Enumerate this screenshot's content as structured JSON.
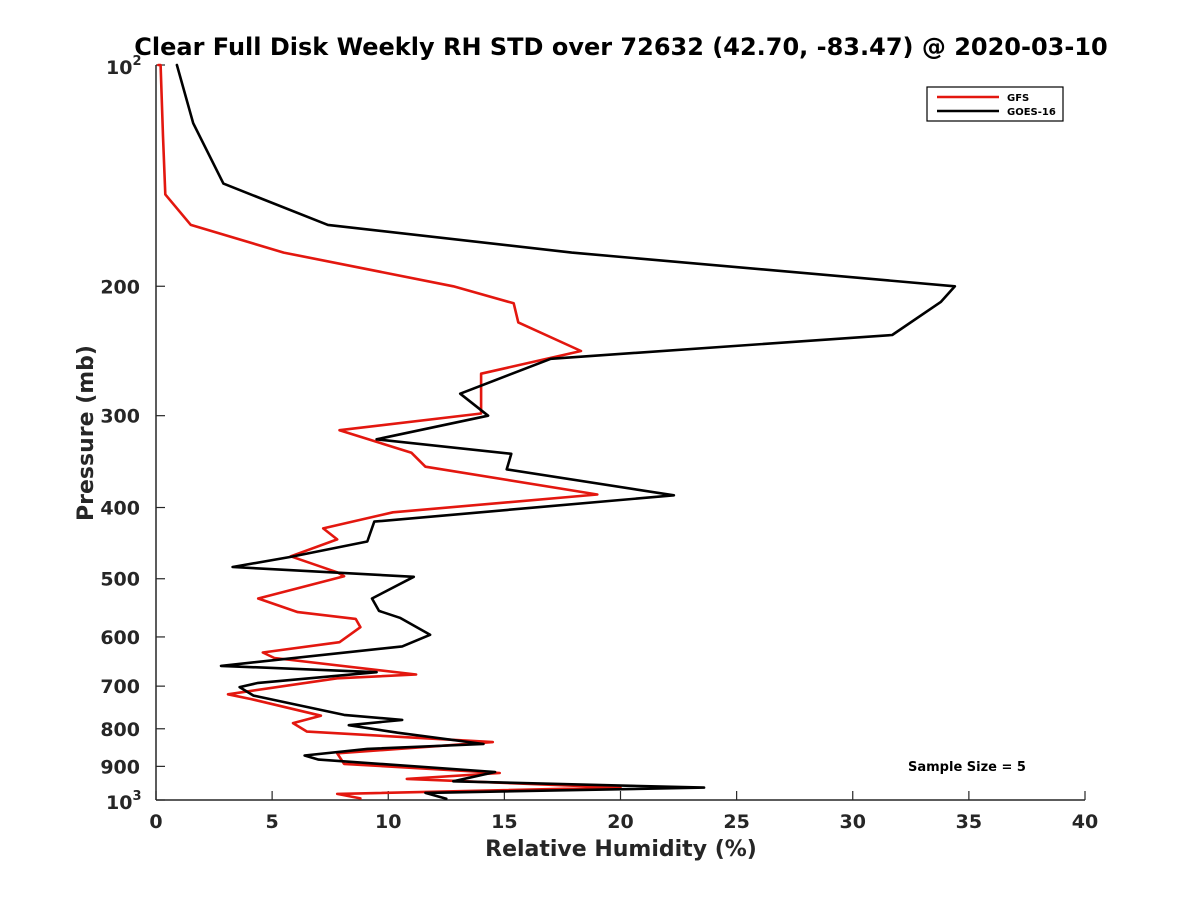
{
  "chart_data": {
    "type": "line",
    "title": "Clear Full Disk Weekly RH STD over 72632 (42.70, -83.47) @ 2020-03-10",
    "xlabel": "Relative Humidity (%)",
    "ylabel": "Pressure (mb)",
    "xlim": [
      0,
      40
    ],
    "ylim": [
      100,
      1000
    ],
    "yscale": "log",
    "y_reversed": true,
    "xticks": [
      0,
      5,
      10,
      15,
      20,
      25,
      30,
      35,
      40
    ],
    "yticks": [
      {
        "value": 100,
        "base": "10",
        "exp": "2"
      },
      {
        "value": 200,
        "label": "200"
      },
      {
        "value": 300,
        "label": "300"
      },
      {
        "value": 400,
        "label": "400"
      },
      {
        "value": 500,
        "label": "500"
      },
      {
        "value": 600,
        "label": "600"
      },
      {
        "value": 700,
        "label": "700"
      },
      {
        "value": 800,
        "label": "800"
      },
      {
        "value": 900,
        "label": "900"
      },
      {
        "value": 1000,
        "base": "10",
        "exp": "3"
      }
    ],
    "grid": false,
    "legend_position": "top-right",
    "annotation": "Sample Size = 5",
    "series": [
      {
        "name": "GFS",
        "color": "#e3170f",
        "points": [
          [
            0.1,
            100
          ],
          [
            0.2,
            100
          ],
          [
            0.3,
            125
          ],
          [
            0.4,
            150
          ],
          [
            1.5,
            165
          ],
          [
            5.5,
            180
          ],
          [
            12.8,
            200
          ],
          [
            15.4,
            211
          ],
          [
            15.6,
            224
          ],
          [
            18.3,
            245
          ],
          [
            14,
            263
          ],
          [
            14,
            298
          ],
          [
            7.9,
            314
          ],
          [
            11,
            337
          ],
          [
            11.6,
            352
          ],
          [
            19,
            384
          ],
          [
            10.2,
            406
          ],
          [
            7.2,
            427
          ],
          [
            7.8,
            442
          ],
          [
            5.8,
            466
          ],
          [
            7.8,
            490
          ],
          [
            8.1,
            496
          ],
          [
            4.4,
            532
          ],
          [
            6.1,
            555
          ],
          [
            8.6,
            567
          ],
          [
            8.8,
            582
          ],
          [
            7.9,
            610
          ],
          [
            4.6,
            630
          ],
          [
            5.1,
            641
          ],
          [
            11.2,
            675
          ],
          [
            7.8,
            683
          ],
          [
            3.1,
            718
          ],
          [
            4.1,
            729
          ],
          [
            7.1,
            768
          ],
          [
            5.9,
            786
          ],
          [
            6.5,
            807
          ],
          [
            14.5,
            834
          ],
          [
            7.8,
            864
          ],
          [
            8.1,
            893
          ],
          [
            14.8,
            919
          ],
          [
            10.8,
            936
          ],
          [
            20,
            962
          ],
          [
            7.8,
            981
          ],
          [
            8.8,
            995
          ]
        ]
      },
      {
        "name": "GOES-16",
        "color": "#000000",
        "points": [
          [
            0.9,
            100
          ],
          [
            1.6,
            120
          ],
          [
            2.9,
            145
          ],
          [
            7.4,
            165
          ],
          [
            17.9,
            180
          ],
          [
            34.4,
            200
          ],
          [
            33.8,
            210
          ],
          [
            31.7,
            233
          ],
          [
            17,
            251
          ],
          [
            13.1,
            280
          ],
          [
            14.3,
            300
          ],
          [
            9.5,
            323
          ],
          [
            15.3,
            338
          ],
          [
            15.1,
            355
          ],
          [
            22.3,
            385
          ],
          [
            9.4,
            418
          ],
          [
            9.1,
            445
          ],
          [
            5.8,
            467
          ],
          [
            3.3,
            482
          ],
          [
            11.1,
            497
          ],
          [
            9.3,
            532
          ],
          [
            9.6,
            553
          ],
          [
            10.5,
            565
          ],
          [
            11.8,
            596
          ],
          [
            10.6,
            618
          ],
          [
            2.8,
            657
          ],
          [
            9.5,
            670
          ],
          [
            4.4,
            693
          ],
          [
            3.6,
            702
          ],
          [
            4.2,
            721
          ],
          [
            8.1,
            766
          ],
          [
            10.6,
            778
          ],
          [
            8.3,
            791
          ],
          [
            10.4,
            810
          ],
          [
            14.1,
            839
          ],
          [
            9.1,
            852
          ],
          [
            6.4,
            870
          ],
          [
            7,
            881
          ],
          [
            14.6,
            916
          ],
          [
            12.8,
            943
          ],
          [
            23.6,
            962
          ],
          [
            11.6,
            978
          ],
          [
            12.5,
            996
          ]
        ]
      }
    ]
  }
}
